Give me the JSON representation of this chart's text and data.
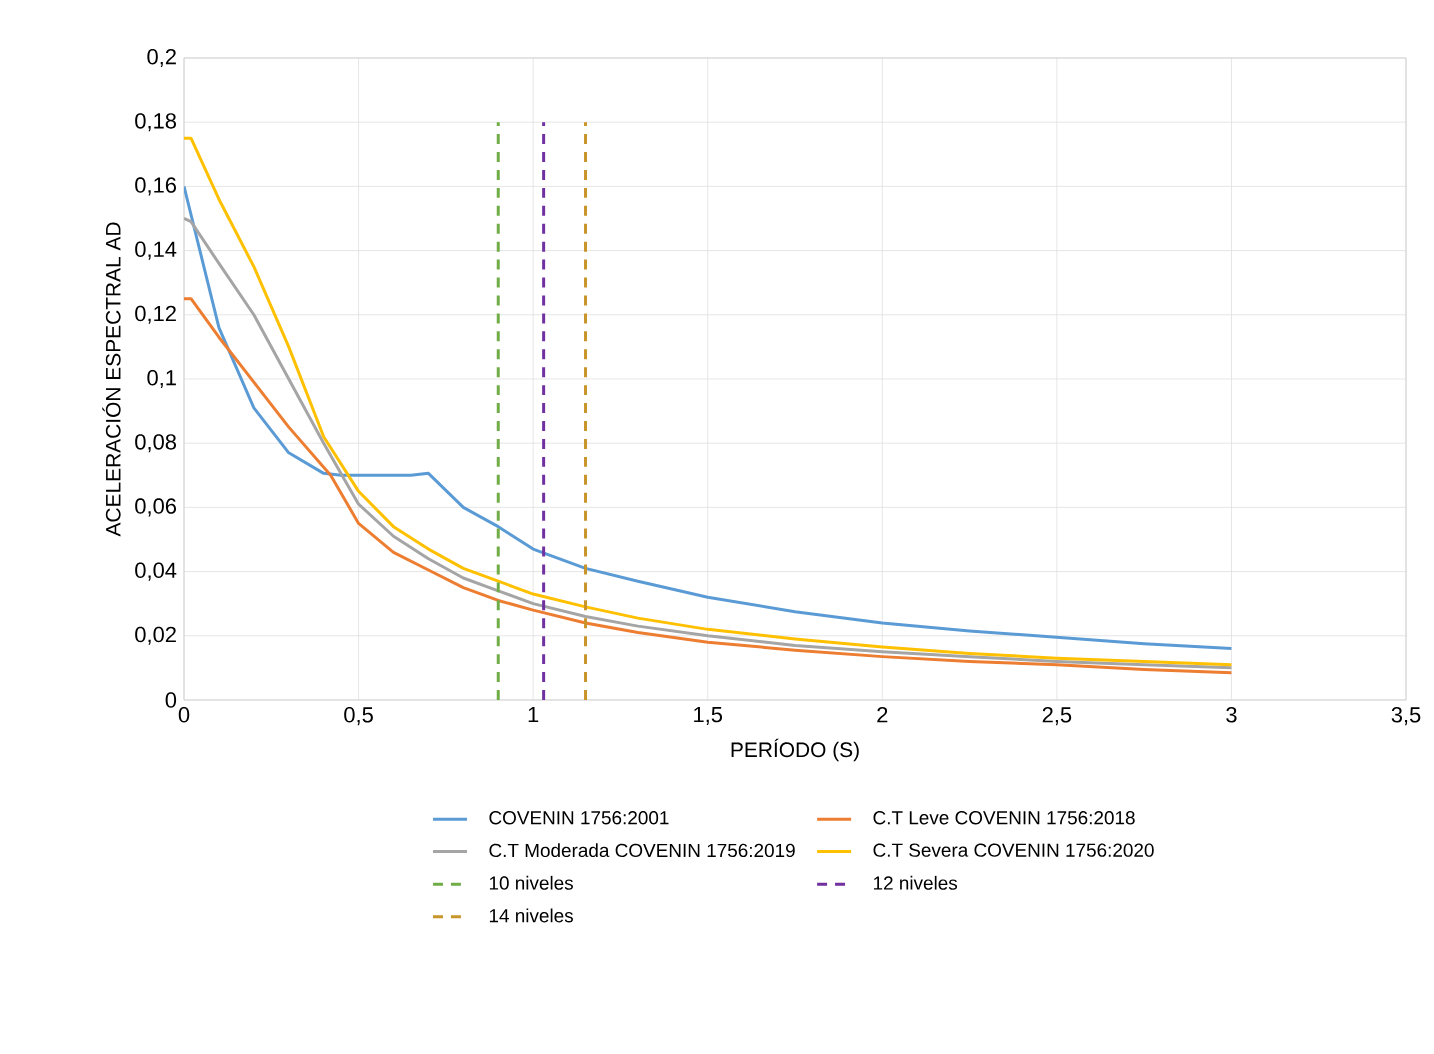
{
  "chart_data": {
    "type": "line",
    "xlabel": "PERÍODO (S)",
    "ylabel": "ACELERACIÓN ESPECTRAL AD",
    "xlim": [
      0,
      3.5
    ],
    "ylim": [
      0,
      0.2
    ],
    "xticks": [
      0,
      {
        "value": 0.5,
        "label": "0,5"
      },
      1,
      {
        "value": 1.5,
        "label": "1,5"
      },
      2,
      {
        "value": 2.5,
        "label": "2,5"
      },
      3,
      {
        "value": 3.5,
        "label": "3,5"
      }
    ],
    "yticks": [
      0,
      {
        "value": 0.02,
        "label": "0,02"
      },
      {
        "value": 0.04,
        "label": "0,04"
      },
      {
        "value": 0.06,
        "label": "0,06"
      },
      {
        "value": 0.08,
        "label": "0,08"
      },
      {
        "value": 0.1,
        "label": "0,1"
      },
      {
        "value": 0.12,
        "label": "0,12"
      },
      {
        "value": 0.14,
        "label": "0,14"
      },
      {
        "value": 0.16,
        "label": "0,16"
      },
      {
        "value": 0.18,
        "label": "0,18"
      },
      {
        "value": 0.2,
        "label": "0,2"
      }
    ],
    "grid": true,
    "legend": "bottom",
    "marker": "none",
    "series": [
      {
        "name": "COVENIN 1756:2001",
        "color": "#5b9bd5",
        "x": [
          0,
          0.1,
          0.2,
          0.3,
          0.4,
          0.45,
          0.55,
          0.65,
          0.7,
          0.8,
          0.9,
          1.0,
          1.15,
          1.3,
          1.5,
          1.75,
          2,
          2.25,
          2.5,
          2.75,
          3
        ],
        "values": [
          0.16,
          0.116,
          0.091,
          0.077,
          0.0706,
          0.07,
          0.07,
          0.07,
          0.0706,
          0.06,
          0.054,
          0.047,
          0.041,
          0.037,
          0.032,
          0.0275,
          0.024,
          0.0215,
          0.0195,
          0.0175,
          0.016
        ]
      },
      {
        "name": "C.T Leve COVENIN 1756:2018",
        "color": "#ed7d31",
        "x": [
          0,
          0.02,
          0.1,
          0.2,
          0.3,
          0.42,
          0.5,
          0.6,
          0.7,
          0.8,
          0.9,
          1.0,
          1.15,
          1.3,
          1.5,
          1.75,
          2,
          2.25,
          2.5,
          2.75,
          3
        ],
        "values": [
          0.125,
          0.125,
          0.113,
          0.099,
          0.085,
          0.07,
          0.055,
          0.046,
          0.0405,
          0.035,
          0.031,
          0.028,
          0.024,
          0.021,
          0.018,
          0.0155,
          0.0135,
          0.012,
          0.011,
          0.0095,
          0.0085
        ]
      },
      {
        "name": "C.T Moderada COVENIN 1756:2019",
        "color": "#a5a5a5",
        "x": [
          0,
          0.02,
          0.1,
          0.2,
          0.3,
          0.4,
          0.5,
          0.6,
          0.7,
          0.8,
          0.9,
          1.0,
          1.15,
          1.3,
          1.5,
          1.75,
          2,
          2.25,
          2.5,
          2.75,
          3
        ],
        "values": [
          0.15,
          0.149,
          0.136,
          0.12,
          0.1,
          0.08,
          0.061,
          0.051,
          0.044,
          0.038,
          0.034,
          0.03,
          0.026,
          0.023,
          0.02,
          0.017,
          0.015,
          0.0135,
          0.012,
          0.011,
          0.01
        ]
      },
      {
        "name": "C.T Severa COVENIN 1756:2020",
        "color": "#ffc000",
        "x": [
          0,
          0.02,
          0.1,
          0.2,
          0.3,
          0.4,
          0.5,
          0.6,
          0.7,
          0.8,
          0.9,
          1.0,
          1.15,
          1.3,
          1.5,
          1.75,
          2,
          2.25,
          2.5,
          2.75,
          3
        ],
        "values": [
          0.175,
          0.175,
          0.156,
          0.135,
          0.11,
          0.082,
          0.065,
          0.054,
          0.047,
          0.041,
          0.037,
          0.033,
          0.029,
          0.0255,
          0.022,
          0.019,
          0.0165,
          0.0145,
          0.013,
          0.012,
          0.011
        ]
      },
      {
        "name": "10 niveles",
        "color": "#70ad47",
        "line_style": "dashed",
        "x": [
          0.9,
          0.9
        ],
        "values": [
          0,
          0.18
        ]
      },
      {
        "name": "12 niveles",
        "color": "#7030a0",
        "line_style": "dashed",
        "x": [
          1.03,
          1.03
        ],
        "values": [
          0,
          0.18
        ]
      },
      {
        "name": "14 niveles",
        "color": "#c9952a",
        "line_style": "dashed",
        "x": [
          1.15,
          1.15
        ],
        "values": [
          0,
          0.18
        ]
      }
    ]
  }
}
